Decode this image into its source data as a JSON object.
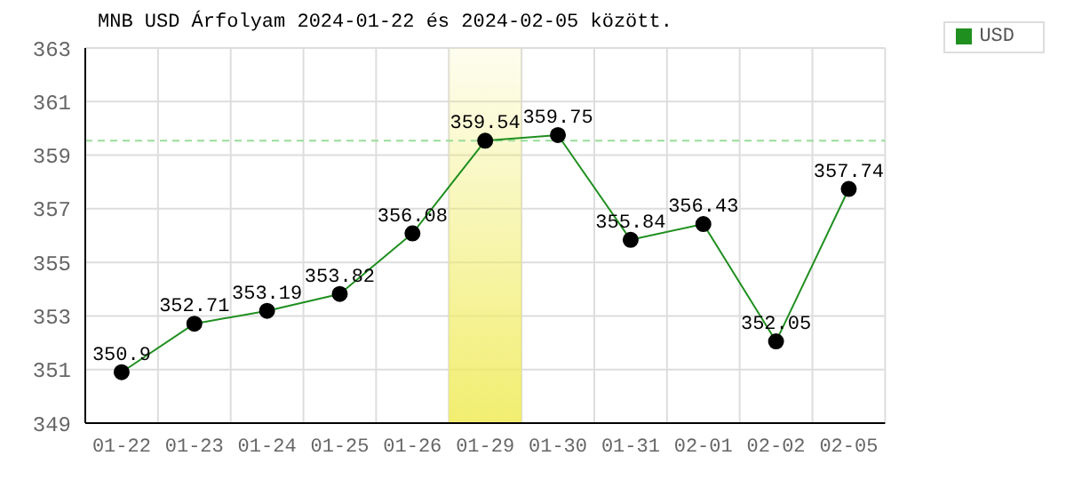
{
  "chart_data": {
    "type": "line",
    "title": "MNB USD Árfolyam 2024-01-22 és 2024-02-05 között.",
    "categories": [
      "01-22",
      "01-23",
      "01-24",
      "01-25",
      "01-26",
      "01-29",
      "01-30",
      "01-31",
      "02-01",
      "02-02",
      "02-05"
    ],
    "series": [
      {
        "name": "USD",
        "color": "#1f8f1f",
        "values": [
          350.9,
          352.71,
          353.19,
          353.82,
          356.08,
          359.54,
          359.75,
          355.84,
          356.43,
          352.05,
          357.74
        ]
      }
    ],
    "ylim": [
      349,
      363
    ],
    "yticks": [
      349,
      351,
      353,
      355,
      357,
      359,
      361,
      363
    ],
    "grid": true,
    "legend": "top right",
    "marker": "circle",
    "data_labels": true,
    "ref_lines": [
      {
        "axis": "y",
        "value": 359.54,
        "color": "#99dd99",
        "line_style": "dashed"
      }
    ],
    "bands": [
      {
        "axis": "x",
        "from": "01-29",
        "to": "01-29",
        "color": "#f0ec60"
      }
    ]
  }
}
